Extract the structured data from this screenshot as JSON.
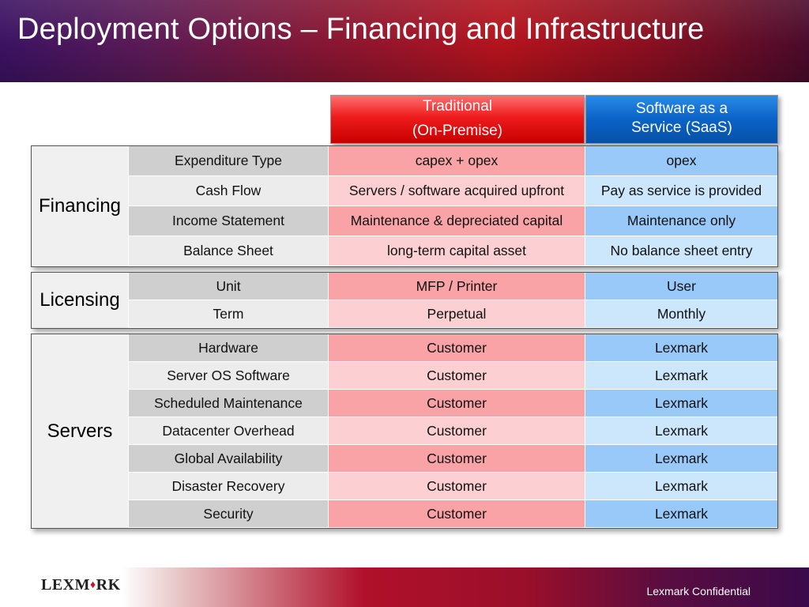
{
  "slide": {
    "title": "Deployment Options – Financing and Infrastructure"
  },
  "columns": {
    "traditional": {
      "line1": "Traditional",
      "line2": "(On-Premise)"
    },
    "saas": {
      "line1": "Software as a",
      "line2": "Service (SaaS)"
    }
  },
  "sections": {
    "financing": {
      "label": "Financing",
      "rows": [
        {
          "item": "Expenditure Type",
          "traditional": "capex + opex",
          "saas": "opex"
        },
        {
          "item": "Cash Flow",
          "traditional": "Servers / software acquired upfront",
          "saas": "Pay as service is provided"
        },
        {
          "item": "Income Statement",
          "traditional": "Maintenance & depreciated capital",
          "saas": "Maintenance only"
        },
        {
          "item": "Balance Sheet",
          "traditional": "long-term capital asset",
          "saas": "No balance sheet entry"
        }
      ]
    },
    "licensing": {
      "label": "Licensing",
      "rows": [
        {
          "item": "Unit",
          "traditional": "MFP / Printer",
          "saas": "User"
        },
        {
          "item": "Term",
          "traditional": "Perpetual",
          "saas": "Monthly"
        }
      ]
    },
    "servers": {
      "label": "Servers",
      "rows": [
        {
          "item": "Hardware",
          "traditional": "Customer",
          "saas": "Lexmark"
        },
        {
          "item": "Server OS Software",
          "traditional": "Customer",
          "saas": "Lexmark"
        },
        {
          "item": "Scheduled Maintenance",
          "traditional": "Customer",
          "saas": "Lexmark"
        },
        {
          "item": "Datacenter Overhead",
          "traditional": "Customer",
          "saas": "Lexmark"
        },
        {
          "item": "Global Availability",
          "traditional": "Customer",
          "saas": "Lexmark"
        },
        {
          "item": "Disaster Recovery",
          "traditional": "Customer",
          "saas": "Lexmark"
        },
        {
          "item": "Security",
          "traditional": "Customer",
          "saas": "Lexmark"
        }
      ]
    }
  },
  "footer": {
    "logo_text_start": "LEXM",
    "logo_text_end": "RK",
    "logo_diamond": "♦",
    "confidential": "Lexmark Confidential"
  },
  "colors": {
    "traditional_header": "#ee1c1c",
    "saas_header": "#0a63c8",
    "traditional_dark": "#f9a3a7",
    "traditional_light": "#fcd0d2",
    "saas_dark": "#99c9f9",
    "saas_light": "#cce6fb"
  }
}
